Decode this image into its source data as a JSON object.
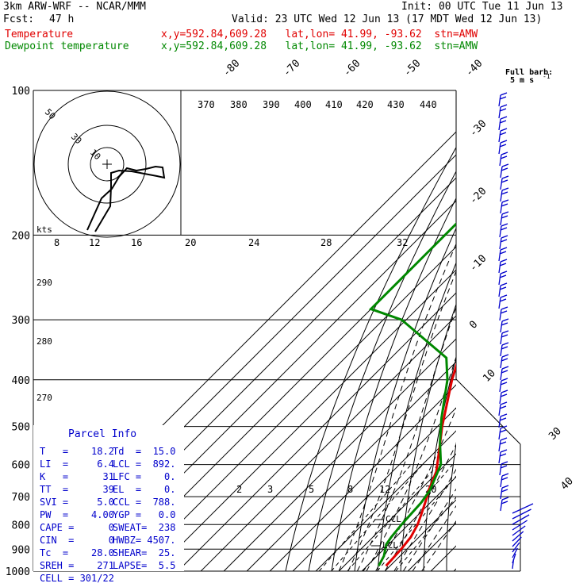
{
  "header": {
    "model": "3km ARW-WRF -- NCAR/MMM",
    "init": "Init: 00 UTC Tue 11 Jun 13",
    "fcst_label": "Fcst:",
    "fcst_value": "47 h",
    "valid": "Valid: 23 UTC Wed 12 Jun 13 (17 MDT Wed 12 Jun 13)",
    "temp_label": "Temperature",
    "dew_label": "Dewpoint temperature",
    "loc": "x,y=592.84,609.28   lat,lon= 41.99, -93.62  stn=AMW",
    "loc2": "x,y=592.84,609.28   lat,lon= 41.99, -93.62  stn=AMW"
  },
  "colors": {
    "temperature": "#e00000",
    "dewpoint": "#008800"
  },
  "barb_legend": {
    "title": "Full barb:",
    "value": "5 m s",
    "sup": "-1"
  },
  "hodograph": {
    "kts_label": "kts",
    "ring_labels": [
      "10",
      "30",
      "50"
    ],
    "speed_axis": [
      "8",
      "12",
      "16",
      "20",
      "24",
      "28",
      "32"
    ],
    "theta_labels": [
      "370",
      "380",
      "390",
      "400",
      "410",
      "420",
      "430",
      "440"
    ],
    "lower_labels": [
      "290",
      "280",
      "270"
    ]
  },
  "chart_data": {
    "type": "line",
    "title": "",
    "xlabel": "",
    "ylabel": "",
    "pressure_ticks": [
      "100",
      "200",
      "300",
      "400",
      "500",
      "600",
      "700",
      "800",
      "900",
      "1000"
    ],
    "isotherm_labels": [
      "-80",
      "-70",
      "-60",
      "-50",
      "-40",
      "-30",
      "-20",
      "-10",
      "0",
      "10",
      "30",
      "40"
    ],
    "mixing_ratio_labels": [
      "2",
      "3",
      "5",
      "8",
      "12",
      "20"
    ],
    "annotations": [
      "CCL",
      "LCL"
    ],
    "series": [
      {
        "name": "Temperature",
        "color": "#e00000",
        "points": [
          [
            100,
            -64
          ],
          [
            125,
            -59
          ],
          [
            160,
            -56
          ],
          [
            220,
            -56
          ],
          [
            300,
            -52
          ],
          [
            400,
            -34
          ],
          [
            500,
            -18
          ],
          [
            560,
            -9
          ],
          [
            620,
            -1
          ],
          [
            680,
            4
          ],
          [
            700,
            6
          ],
          [
            760,
            11
          ],
          [
            800,
            14
          ],
          [
            850,
            16.5
          ],
          [
            900,
            17.5
          ],
          [
            950,
            18
          ],
          [
            975,
            18.2
          ]
        ]
      },
      {
        "name": "Dewpoint temperature",
        "color": "#008800",
        "points": [
          [
            100,
            -100
          ],
          [
            150,
            -100
          ],
          [
            190,
            -100
          ],
          [
            220,
            -100
          ],
          [
            285,
            -100
          ],
          [
            300,
            -82
          ],
          [
            360,
            -46
          ],
          [
            400,
            -36
          ],
          [
            480,
            -22
          ],
          [
            540,
            -12
          ],
          [
            600,
            -2
          ],
          [
            680,
            4.5
          ],
          [
            720,
            6
          ],
          [
            800,
            7
          ],
          [
            850,
            8
          ],
          [
            880,
            9
          ],
          [
            930,
            13
          ],
          [
            975,
            15
          ]
        ]
      }
    ]
  },
  "parcel": {
    "title": "Parcel Info",
    "rows": [
      [
        "T   =    18.2",
        "Td  =  15.0"
      ],
      [
        "LI  =     6.4",
        "LCL =  892."
      ],
      [
        "K   =      31",
        "LFC =    0."
      ],
      [
        "TT  =      39",
        "EL  =    0."
      ],
      [
        "SVI =     5.0",
        "CCL =  788."
      ],
      [
        "PW  =    4.00",
        "YGP =   0.0"
      ],
      [
        "CAPE =      0",
        "SWEAT=  238"
      ],
      [
        "CIN  =      0",
        "HWBZ= 4507."
      ],
      [
        "Tc  =    28.0",
        "SHEAR=  25."
      ],
      [
        "SREH =    271",
        "LAPSE=  5.5"
      ],
      [
        "CELL = 301/22",
        ""
      ]
    ]
  }
}
